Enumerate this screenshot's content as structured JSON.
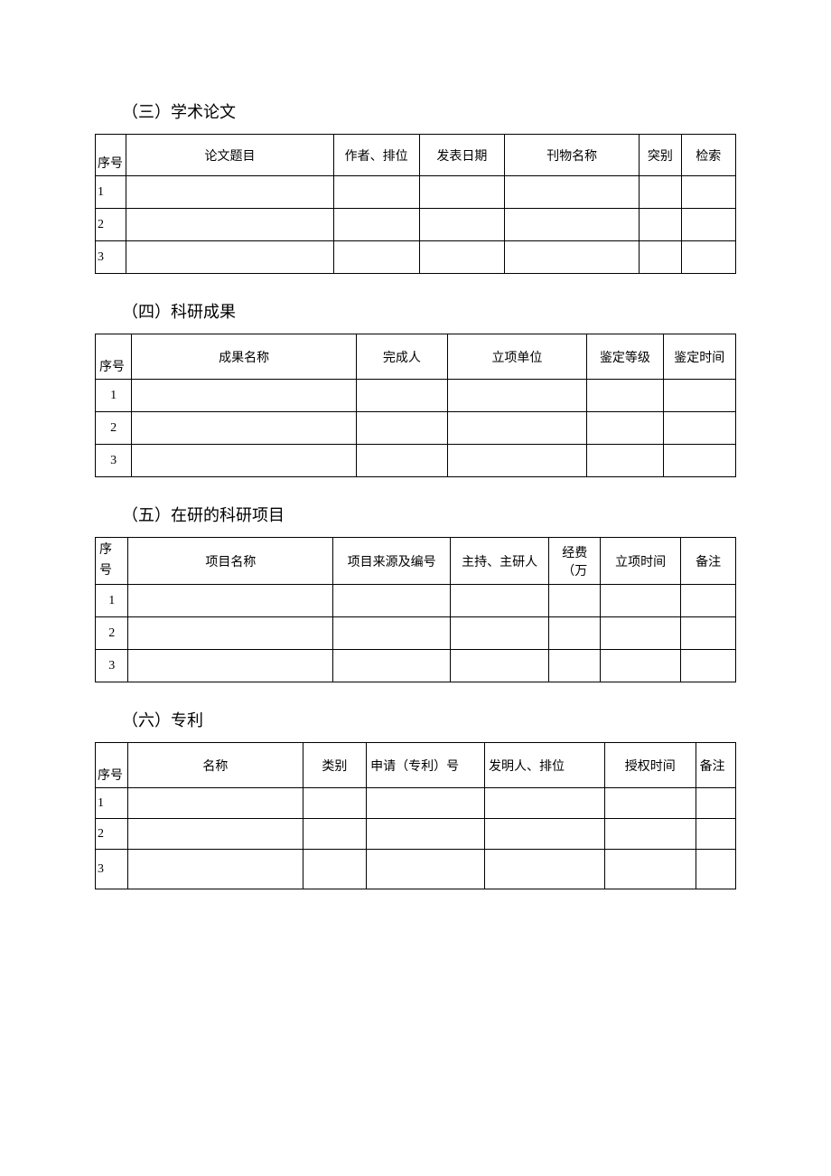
{
  "sections": {
    "s1": {
      "title": "（三）学术论文",
      "columns": [
        "序号",
        "论文题目",
        "作者、排位",
        "发表日期",
        "刊物名称",
        "突别",
        "检索"
      ],
      "rows": [
        [
          "1",
          "",
          "",
          "",
          "",
          "",
          ""
        ],
        [
          "2",
          "",
          "",
          "",
          "",
          "",
          ""
        ],
        [
          "3",
          "",
          "",
          "",
          "",
          "",
          ""
        ]
      ]
    },
    "s2": {
      "title": "（四）科研成果",
      "columns": [
        "序号",
        "成果名称",
        "完成人",
        "立项单位",
        "鉴定等级",
        "鉴定时间"
      ],
      "rows": [
        [
          "1",
          "",
          "",
          "",
          "",
          ""
        ],
        [
          "2",
          "",
          "",
          "",
          "",
          ""
        ],
        [
          "3",
          "",
          "",
          "",
          "",
          ""
        ]
      ]
    },
    "s3": {
      "title": "（五）在研的科研项目",
      "columns": [
        "序号",
        "项目名称",
        "项目来源及编号",
        "主持、主研人",
        "经费（万",
        "立项时间",
        "备注"
      ],
      "col1_l1": "序",
      "col1_l2": "号",
      "col5_l1": "经费",
      "col5_l2": "（万",
      "rows": [
        [
          "1",
          "",
          "",
          "",
          "",
          "",
          ""
        ],
        [
          "2",
          "",
          "",
          "",
          "",
          "",
          ""
        ],
        [
          "3",
          "",
          "",
          "",
          "",
          "",
          ""
        ]
      ]
    },
    "s4": {
      "title": "（六）专利",
      "columns": [
        "序号",
        "名称",
        "类别",
        "申请（专利）号",
        "发明人、排位",
        "授权时间",
        "备注"
      ],
      "rows": [
        [
          "1",
          "",
          "",
          "",
          "",
          "",
          ""
        ],
        [
          "2",
          "",
          "",
          "",
          "",
          "",
          ""
        ],
        [
          "3",
          "",
          "",
          "",
          "",
          "",
          ""
        ]
      ]
    }
  }
}
